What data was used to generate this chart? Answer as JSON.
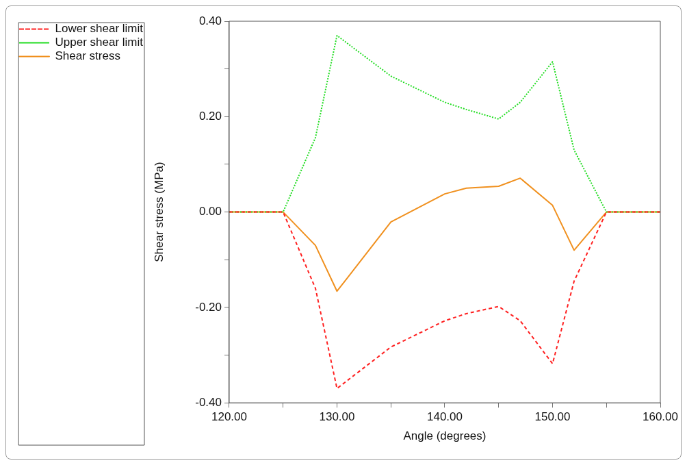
{
  "chart_data": {
    "type": "line",
    "xlabel": "Angle (degrees)",
    "ylabel": "Shear stress (MPa)",
    "x": [
      120,
      125,
      128,
      130,
      135,
      140,
      142,
      145,
      147,
      150,
      152,
      155,
      160
    ],
    "series": [
      {
        "name": "Lower shear limit",
        "color": "#ff2020",
        "line_style": "dashed",
        "values": [
          0,
          0,
          -0.16,
          -0.37,
          -0.283,
          -0.228,
          -0.213,
          -0.198,
          -0.228,
          -0.318,
          -0.145,
          0,
          0
        ]
      },
      {
        "name": "Upper shear limit",
        "color": "#22dd22",
        "line_style": "dotted",
        "values": [
          0,
          0,
          0.156,
          0.37,
          0.285,
          0.23,
          0.215,
          0.195,
          0.23,
          0.315,
          0.13,
          0,
          0
        ]
      },
      {
        "name": "Shear stress",
        "color": "#f0901e",
        "line_style": "solid",
        "values": [
          0,
          0,
          -0.07,
          -0.166,
          -0.021,
          0.038,
          0.05,
          0.054,
          0.071,
          0.014,
          -0.08,
          0,
          0
        ]
      }
    ],
    "xlim": [
      120,
      160
    ],
    "xticks": [
      {
        "value": 120,
        "label": "120.00"
      },
      {
        "value": 125,
        "label": null
      },
      {
        "value": 130,
        "label": "130.00"
      },
      {
        "value": 135,
        "label": null
      },
      {
        "value": 140,
        "label": "140.00"
      },
      {
        "value": 145,
        "label": null
      },
      {
        "value": 150,
        "label": "150.00"
      },
      {
        "value": 155,
        "label": null
      },
      {
        "value": 160,
        "label": "160.00"
      }
    ],
    "ylim": [
      -0.4,
      0.4
    ],
    "yticks": [
      {
        "value": -0.4,
        "label": "-0.40"
      },
      {
        "value": -0.3,
        "label": null
      },
      {
        "value": -0.2,
        "label": "-0.20"
      },
      {
        "value": -0.1,
        "label": null
      },
      {
        "value": 0,
        "label": "0.00"
      },
      {
        "value": 0.1,
        "label": null
      },
      {
        "value": 0.2,
        "label": "0.20"
      },
      {
        "value": 0.3,
        "label": null
      },
      {
        "value": 0.4,
        "label": "0.40"
      }
    ],
    "grid": false,
    "legend": "top left",
    "marker": "none"
  }
}
